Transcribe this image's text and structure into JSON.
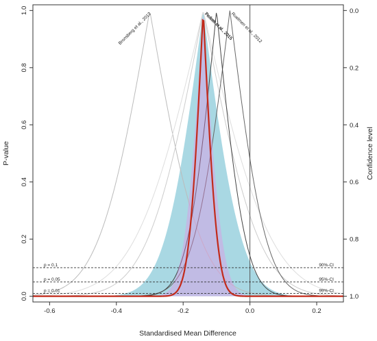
{
  "chart_data": {
    "type": "line",
    "xlabel": "Standardised Mean Difference",
    "ylabel_left": "P-value",
    "ylabel_right": "Confidence level",
    "xlim": [
      -0.65,
      0.28
    ],
    "ylim": [
      -0.02,
      1.02
    ],
    "x_ticks": [
      {
        "value": -0.6,
        "label": "-0.6"
      },
      {
        "value": -0.4,
        "label": "-0.4"
      },
      {
        "value": -0.2,
        "label": "-0.2"
      },
      {
        "value": 0.0,
        "label": "0.0"
      },
      {
        "value": 0.2,
        "label": "0.2"
      }
    ],
    "y_ticks_left": [
      {
        "value": 0.0,
        "label": "0.0"
      },
      {
        "value": 0.2,
        "label": "0.2"
      },
      {
        "value": 0.4,
        "label": "0.4"
      },
      {
        "value": 0.6,
        "label": "0.6"
      },
      {
        "value": 0.8,
        "label": "0.8"
      },
      {
        "value": 1.0,
        "label": "1.0"
      }
    ],
    "y_ticks_right": [
      {
        "value": 1.0,
        "label": "0.0"
      },
      {
        "value": 0.8,
        "label": "0.2"
      },
      {
        "value": 0.6,
        "label": "0.4"
      },
      {
        "value": 0.4,
        "label": "0.6"
      },
      {
        "value": 0.2,
        "label": "0.8"
      },
      {
        "value": 0.0,
        "label": "1.0"
      }
    ],
    "null_line_x": 0.0,
    "reference_lines": [
      {
        "p": 0.1,
        "left_label": "p = 0.1",
        "right_label": "90%-CI"
      },
      {
        "p": 0.05,
        "left_label": "p = 0.05",
        "right_label": "95%-CI"
      },
      {
        "p": 0.01,
        "left_label": "p = 0.01",
        "right_label": "99%-CI"
      }
    ],
    "studies": [
      {
        "label": "Bronsberg et al., 2012",
        "estimate": -0.3,
        "se": 0.12,
        "color": "#bbbbbb"
      },
      {
        "label": "Pericot et al., 2015",
        "estimate": -0.14,
        "se": 0.13,
        "color": "#cccccc"
      },
      {
        "label": "Trubek et al., 2015",
        "estimate": -0.14,
        "se": 0.16,
        "color": "#dddddd"
      },
      {
        "label": "Ruelmen et al., 2012",
        "estimate": -0.06,
        "se": 0.085,
        "color": "#666666"
      },
      {
        "label": "",
        "estimate": -0.1,
        "se": 0.068,
        "color": "#444444"
      }
    ],
    "pooled": {
      "estimate": -0.14,
      "se": 0.033,
      "color": "#c22a1a",
      "band_color": "#ee88e4"
    },
    "prediction": {
      "estimate": -0.14,
      "se": 0.09,
      "color": "#a9d8e3"
    },
    "colors": {
      "null_line": "#555555",
      "reference_line": "#333333",
      "axis": "#333333"
    }
  }
}
